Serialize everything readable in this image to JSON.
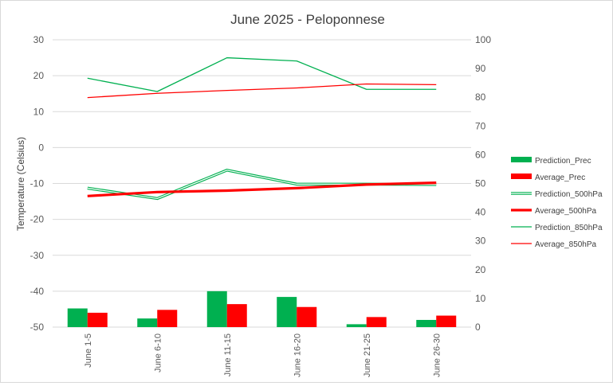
{
  "chart_data": {
    "type": "bar+line",
    "title": "June 2025 - Peloponnese",
    "ylabel": "Temperature (Celsius)",
    "xlabel": "",
    "y_left": {
      "range": [
        -50,
        30
      ],
      "ticks": [
        30,
        20,
        10,
        0,
        -10,
        -20,
        -30,
        -40,
        -50
      ]
    },
    "y_right": {
      "range": [
        0,
        100
      ],
      "ticks": [
        100,
        90,
        80,
        70,
        60,
        50,
        40,
        30,
        20,
        10,
        0
      ]
    },
    "grid": "horizontal",
    "legend_position": "right",
    "categories": [
      "June 1-5",
      "June 6-10",
      "June 11-15",
      "June 16-20",
      "June 21-25",
      "June 26-30"
    ],
    "series": [
      {
        "name": "Prediction_Prec",
        "type": "bar",
        "axis": "right",
        "color": "#00b050",
        "values": [
          6.5,
          3.0,
          12.5,
          10.5,
          1.0,
          2.5
        ]
      },
      {
        "name": "Average_Prec",
        "type": "bar",
        "axis": "right",
        "color": "#ff0000",
        "values": [
          5.0,
          6.0,
          8.0,
          7.0,
          3.5,
          4.0
        ]
      },
      {
        "name": "Prediction_500hPa",
        "type": "line",
        "style": "double",
        "axis": "left",
        "color": "#00b050",
        "values": [
          -11.3,
          -14.2,
          -6.3,
          -10.2,
          -10.2,
          -10.3
        ]
      },
      {
        "name": "Average_500hPa",
        "type": "line",
        "style": "thick",
        "axis": "left",
        "color": "#ff0000",
        "values": [
          -13.5,
          -12.4,
          -12.0,
          -11.3,
          -10.3,
          -9.8
        ]
      },
      {
        "name": "Prediction_850hPa",
        "type": "line",
        "axis": "left",
        "color": "#00b050",
        "values": [
          19.3,
          15.6,
          25.0,
          24.1,
          16.2,
          16.2
        ]
      },
      {
        "name": "Average_850hPa",
        "type": "line",
        "axis": "left",
        "color": "#ff0000",
        "values": [
          13.9,
          15.1,
          15.9,
          16.6,
          17.7,
          17.5
        ]
      }
    ]
  }
}
